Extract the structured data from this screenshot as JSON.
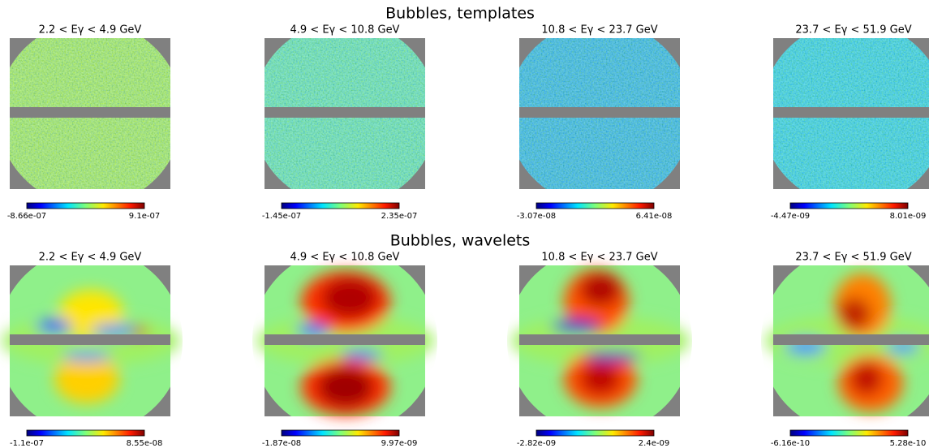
{
  "rows": [
    {
      "title": "Bubbles, templates",
      "panels": [
        {
          "title": "2.2  < Eγ < 4.9 GeV",
          "min": "-8.66e-07",
          "max": "9.1e-07"
        },
        {
          "title": "4.9  < Eγ < 10.8 GeV",
          "min": "-1.45e-07",
          "max": "2.35e-07"
        },
        {
          "title": "10.8  < Eγ < 23.7 GeV",
          "min": "-3.07e-08",
          "max": "6.41e-08"
        },
        {
          "title": "23.7  < Eγ < 51.9 GeV",
          "min": "-4.47e-09",
          "max": "8.01e-09"
        }
      ]
    },
    {
      "title": "Bubbles, wavelets",
      "panels": [
        {
          "title": "2.2  < Eγ < 4.9 GeV",
          "min": "-1.1e-07",
          "max": "8.55e-08"
        },
        {
          "title": "4.9  < Eγ < 10.8 GeV",
          "min": "-1.87e-08",
          "max": "9.97e-09"
        },
        {
          "title": "10.8  < Eγ < 23.7 GeV",
          "min": "-2.82e-09",
          "max": "2.4e-09"
        },
        {
          "title": "23.7  < Eγ < 51.9 GeV",
          "min": "-6.16e-10",
          "max": "5.28e-10"
        }
      ]
    }
  ]
}
